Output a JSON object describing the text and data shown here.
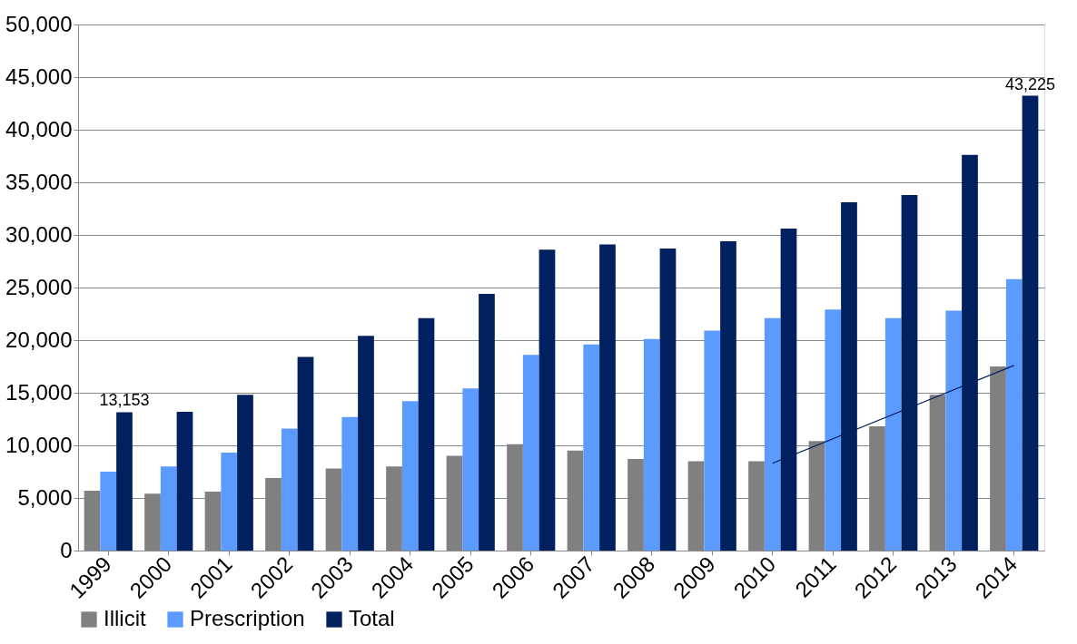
{
  "chart_data": {
    "type": "bar",
    "categories": [
      "1999",
      "2000",
      "2001",
      "2002",
      "2003",
      "2004",
      "2005",
      "2006",
      "2007",
      "2008",
      "2009",
      "2010",
      "2011",
      "2012",
      "2013",
      "2014"
    ],
    "series": [
      {
        "name": "Illicit",
        "color": "#808080",
        "values": [
          5700,
          5400,
          5600,
          6900,
          7800,
          8000,
          9000,
          10100,
          9500,
          8700,
          8500,
          8500,
          10400,
          11800,
          14800,
          17500
        ]
      },
      {
        "name": "Prescription",
        "color": "#5b9bff",
        "values": [
          7500,
          8000,
          9300,
          11600,
          12700,
          14200,
          15400,
          18600,
          19600,
          20100,
          20900,
          22100,
          22900,
          22100,
          22800,
          25800
        ]
      },
      {
        "name": "Total",
        "color": "#002060",
        "values": [
          13153,
          13200,
          14800,
          18400,
          20400,
          22100,
          24400,
          28600,
          29100,
          28700,
          29400,
          30600,
          33100,
          33800,
          37600,
          43225
        ],
        "value_labels": [
          "13,153",
          null,
          null,
          null,
          null,
          null,
          null,
          null,
          null,
          null,
          null,
          null,
          null,
          null,
          null,
          "43,225"
        ]
      },
      {
        "type": "line",
        "color": "#002060",
        "values": [
          null,
          null,
          null,
          null,
          null,
          null,
          null,
          null,
          null,
          null,
          null,
          8300,
          null,
          null,
          null,
          17600
        ]
      }
    ],
    "ylim": [
      0,
      50000
    ],
    "yticks": [
      {
        "value": 0,
        "label": "0"
      },
      {
        "value": 5000,
        "label": "5,000"
      },
      {
        "value": 10000,
        "label": "10,000"
      },
      {
        "value": 15000,
        "label": "15,000"
      },
      {
        "value": 20000,
        "label": "20,000"
      },
      {
        "value": 25000,
        "label": "25,000"
      },
      {
        "value": 30000,
        "label": "30,000"
      },
      {
        "value": 35000,
        "label": "35,000"
      },
      {
        "value": 40000,
        "label": "40,000"
      },
      {
        "value": 45000,
        "label": "45,000"
      },
      {
        "value": 50000,
        "label": "50,000"
      }
    ],
    "grid": "y",
    "legend": "bottom"
  }
}
